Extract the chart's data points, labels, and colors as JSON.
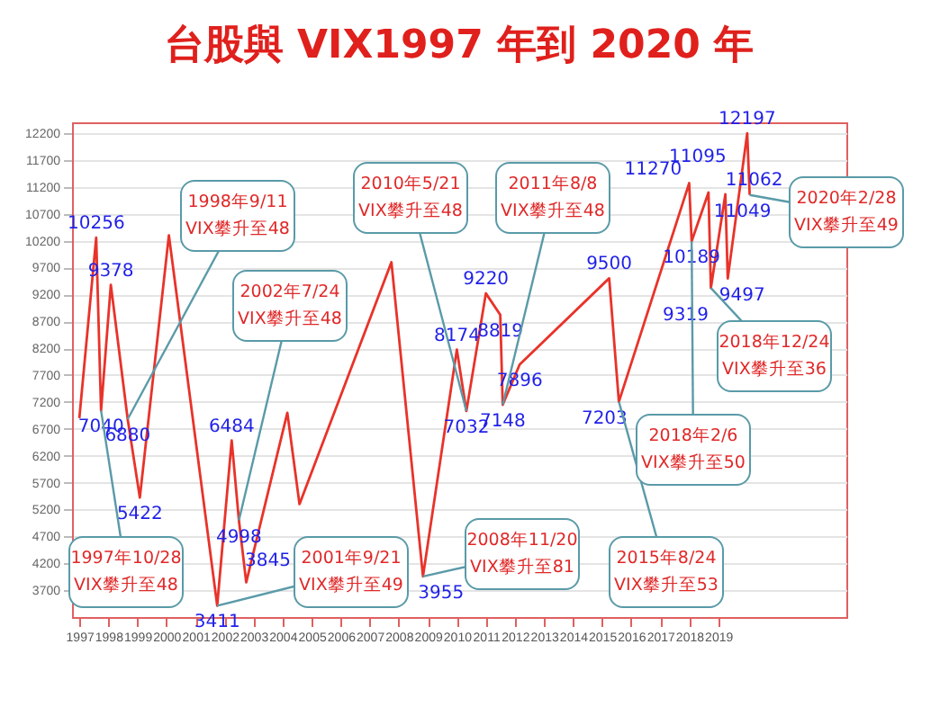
{
  "chart_data": {
    "type": "line",
    "title": "台股與 VIX1997 年到 2020 年",
    "x": [
      "1997-01",
      "1997-08",
      "1997-10",
      "1998-02",
      "1998-09",
      "1999-02",
      "2000-02",
      "2001-10",
      "2002-04",
      "2002-07",
      "2002-10",
      "2004-03",
      "2004-08",
      "2007-10",
      "2008-11",
      "2010-01",
      "2010-05",
      "2011-01",
      "2011-07",
      "2011-08",
      "2012-03",
      "2015-04",
      "2015-08",
      "2018-01",
      "2018-02",
      "2018-09",
      "2018-10",
      "2019-04",
      "2019-05",
      "2020-01",
      "2020-02"
    ],
    "series": [
      {
        "color": "#e8332a",
        "values": [
          6900,
          10256,
          7040,
          9378,
          6880,
          5422,
          10300,
          3411,
          6484,
          4998,
          3845,
          7000,
          5300,
          9800,
          3955,
          8174,
          7032,
          9220,
          8819,
          7148,
          7896,
          9500,
          7203,
          11270,
          10189,
          11095,
          9319,
          11062,
          9497,
          12197,
          11049
        ],
        "value_labels": [
          null,
          "10256",
          "7040",
          "9378",
          "6880",
          "5422",
          null,
          "3411",
          "6484",
          "4998",
          "3845",
          null,
          null,
          null,
          "3955",
          "8174",
          "7032",
          "9220",
          "8819",
          "7148",
          "7896",
          "9500",
          "7203",
          "11270",
          "10189",
          "11095",
          "9319",
          "11062",
          "9497",
          "12197",
          "11049"
        ]
      }
    ],
    "xlim": [
      "1996-10",
      "2023-06"
    ],
    "xticks": [
      "1997",
      "1998",
      "1999",
      "2000",
      "2001",
      "2002",
      "2003",
      "2004",
      "2005",
      "2006",
      "2007",
      "2008",
      "2009",
      "2010",
      "2011",
      "2012",
      "2013",
      "2014",
      "2015",
      "2016",
      "2017",
      "2018",
      "2019"
    ],
    "ylim": [
      3200,
      12400
    ],
    "yticks": [
      3700,
      4200,
      4700,
      5200,
      5700,
      6200,
      6700,
      7200,
      7700,
      8200,
      8700,
      9200,
      9700,
      10200,
      10700,
      11200,
      11700,
      12200
    ],
    "grid": "y",
    "line_style": "solid",
    "marker": "none",
    "annotations": [
      {
        "text": "1998年9/11\nVIX攀升至48",
        "x": "1998-09",
        "y": 6880
      },
      {
        "text": "1997年10/28\nVIX攀升至48",
        "x": "1997-10",
        "y": 7040
      },
      {
        "text": "2002年7/24\nVIX攀升至48",
        "x": "2002-07",
        "y": 4998
      },
      {
        "text": "2001年9/21\nVIX攀升至49",
        "x": "2001-10",
        "y": 3411
      },
      {
        "text": "2010年5/21\nVIX攀升至48",
        "x": "2010-05",
        "y": 7032
      },
      {
        "text": "2011年8/8\nVIX攀升至48",
        "x": "2011-08",
        "y": 7148
      },
      {
        "text": "2008年11/20\nVIX攀升至81",
        "x": "2008-11",
        "y": 3955
      },
      {
        "text": "2015年8/24\nVIX攀升至53",
        "x": "2015-08",
        "y": 7203
      },
      {
        "text": "2018年2/6\nVIX攀升至50",
        "x": "2018-02",
        "y": 10189
      },
      {
        "text": "2018年12/24\nVIX攀升至36",
        "x": "2018-10",
        "y": 9319
      },
      {
        "text": "2020年2/28\nVIX攀升至49",
        "x": "2020-02",
        "y": 11049
      }
    ]
  }
}
